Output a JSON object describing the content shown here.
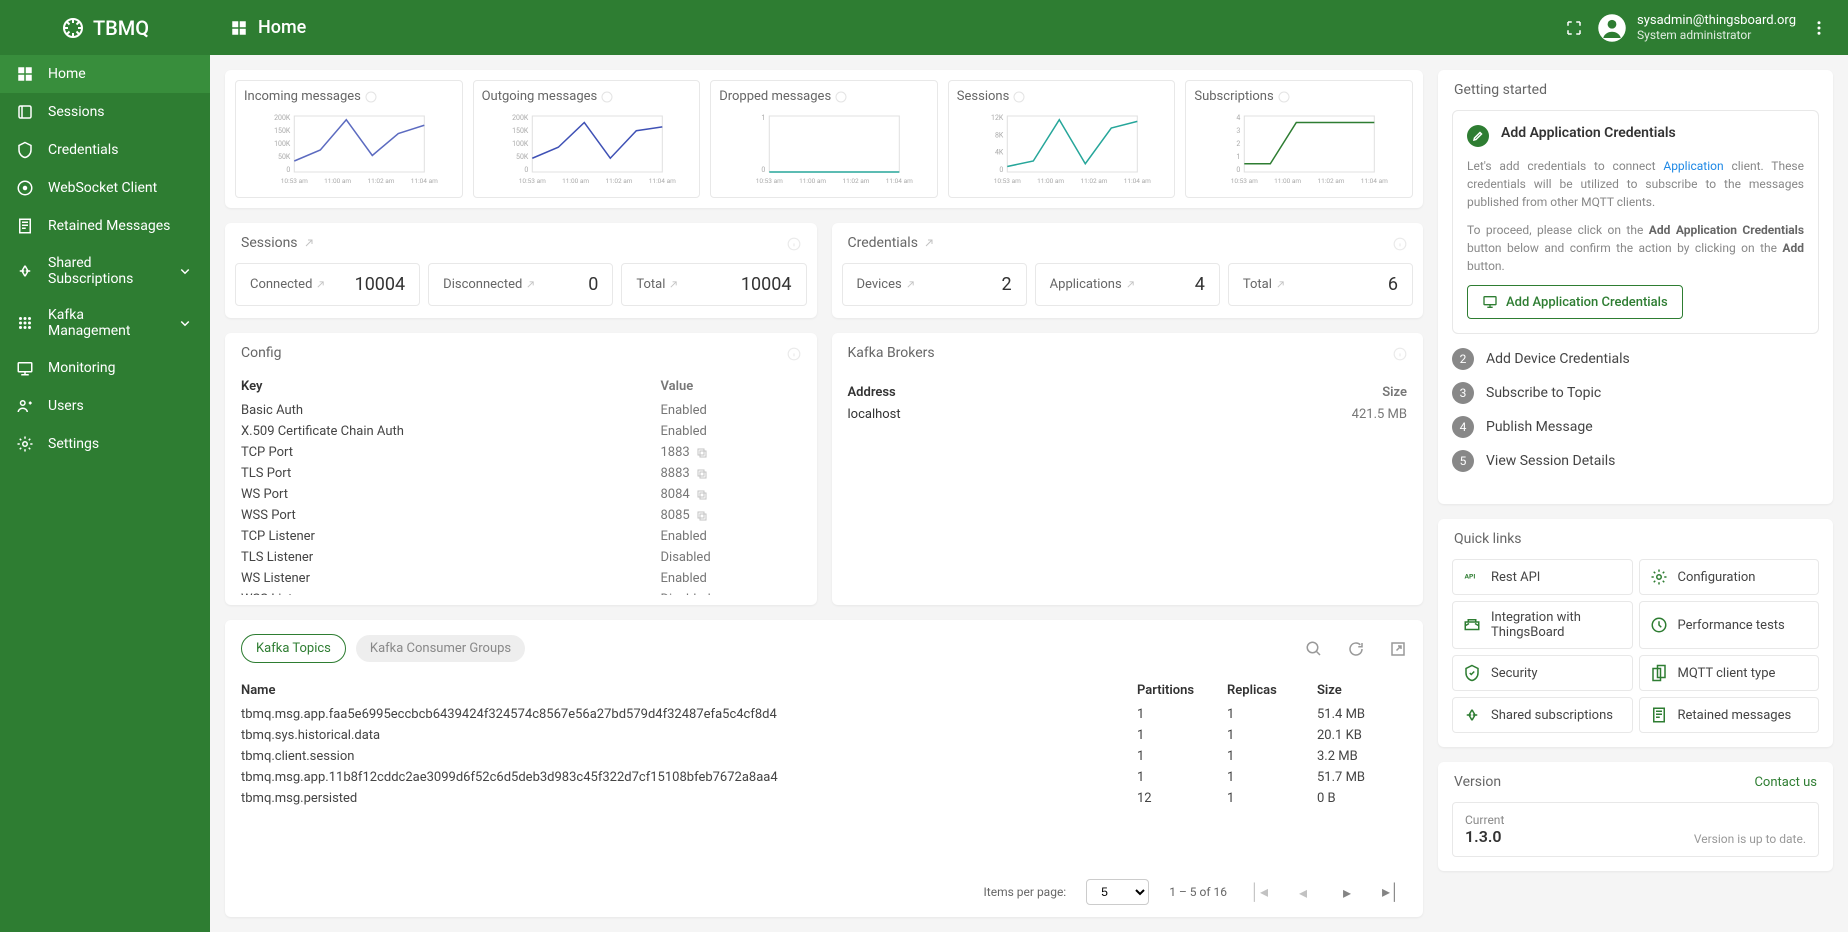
{
  "brand": "TBMQ",
  "pageTitle": "Home",
  "user": {
    "email": "sysadmin@thingsboard.org",
    "role": "System administrator"
  },
  "sidebar": {
    "items": [
      {
        "label": "Home",
        "active": true
      },
      {
        "label": "Sessions"
      },
      {
        "label": "Credentials"
      },
      {
        "label": "WebSocket Client"
      },
      {
        "label": "Retained Messages"
      },
      {
        "label": "Shared Subscriptions",
        "expandable": true
      },
      {
        "label": "Kafka Management",
        "expandable": true
      },
      {
        "label": "Monitoring"
      },
      {
        "label": "Users"
      },
      {
        "label": "Settings"
      }
    ]
  },
  "charts": [
    {
      "title": "Incoming messages",
      "color": "#5c6bc0",
      "yticks": [
        "200K",
        "150K",
        "100K",
        "50K",
        "0"
      ],
      "xticks": [
        "10:53 am",
        "11:00 am",
        "11:02 am",
        "11:04 am"
      ],
      "points": [
        20,
        40,
        95,
        30,
        70,
        85
      ]
    },
    {
      "title": "Outgoing messages",
      "color": "#3f51b5",
      "yticks": [
        "200K",
        "150K",
        "100K",
        "50K",
        "0"
      ],
      "xticks": [
        "10:53 am",
        "11:00 am",
        "11:02 am",
        "11:04 am"
      ],
      "points": [
        25,
        45,
        90,
        25,
        75,
        82
      ]
    },
    {
      "title": "Dropped messages",
      "color": "#26a69a",
      "yticks": [
        "1",
        "0"
      ],
      "xticks": [
        "10:53 am",
        "11:00 am",
        "11:02 am",
        "11:04 am"
      ],
      "points": [
        0,
        0,
        0,
        0,
        0,
        0
      ]
    },
    {
      "title": "Sessions",
      "color": "#26a69a",
      "yticks": [
        "12K",
        "8K",
        "4K",
        "0"
      ],
      "xticks": [
        "10:53 am",
        "11:00 am",
        "11:02 am",
        "11:04 am"
      ],
      "points": [
        10,
        20,
        95,
        15,
        80,
        92
      ]
    },
    {
      "title": "Subscriptions",
      "color": "#2e7d32",
      "yticks": [
        "4",
        "3",
        "2",
        "1",
        "0"
      ],
      "xticks": [
        "10:53 am",
        "11:00 am",
        "11:02 am",
        "11:04 am"
      ],
      "points": [
        15,
        15,
        90,
        90,
        90,
        90
      ]
    }
  ],
  "sessionsSection": {
    "title": "Sessions",
    "stats": [
      {
        "label": "Connected",
        "value": "10004"
      },
      {
        "label": "Disconnected",
        "value": "0"
      },
      {
        "label": "Total",
        "value": "10004"
      }
    ]
  },
  "credentialsSection": {
    "title": "Credentials",
    "stats": [
      {
        "label": "Devices",
        "value": "2"
      },
      {
        "label": "Applications",
        "value": "4"
      },
      {
        "label": "Total",
        "value": "6"
      }
    ]
  },
  "configSection": {
    "title": "Config",
    "keyHeader": "Key",
    "valueHeader": "Value",
    "rows": [
      {
        "key": "Basic Auth",
        "value": "Enabled"
      },
      {
        "key": "X.509 Certificate Chain Auth",
        "value": "Enabled"
      },
      {
        "key": "TCP Port",
        "value": "1883",
        "copy": true
      },
      {
        "key": "TLS Port",
        "value": "8883",
        "copy": true
      },
      {
        "key": "WS Port",
        "value": "8084",
        "copy": true
      },
      {
        "key": "WSS Port",
        "value": "8085",
        "copy": true
      },
      {
        "key": "TCP Listener",
        "value": "Enabled"
      },
      {
        "key": "TLS Listener",
        "value": "Disabled"
      },
      {
        "key": "WS Listener",
        "value": "Enabled"
      },
      {
        "key": "WSS Listener",
        "value": "Disabled"
      }
    ]
  },
  "brokersSection": {
    "title": "Kafka Brokers",
    "addressHeader": "Address",
    "sizeHeader": "Size",
    "rows": [
      {
        "address": "localhost",
        "size": "421.5 MB"
      }
    ]
  },
  "topicsSection": {
    "tabs": [
      {
        "label": "Kafka Topics",
        "active": true
      },
      {
        "label": "Kafka Consumer Groups"
      }
    ],
    "headers": {
      "name": "Name",
      "partitions": "Partitions",
      "replicas": "Replicas",
      "size": "Size"
    },
    "rows": [
      {
        "name": "tbmq.msg.app.faa5e6995eccbcb6439424f324574c8567e56a27bd579d4f32487efa5c4cf8d4",
        "partitions": "1",
        "replicas": "1",
        "size": "51.4 MB"
      },
      {
        "name": "tbmq.sys.historical.data",
        "partitions": "1",
        "replicas": "1",
        "size": "20.1 KB"
      },
      {
        "name": "tbmq.client.session",
        "partitions": "1",
        "replicas": "1",
        "size": "3.2 MB"
      },
      {
        "name": "tbmq.msg.app.11b8f12cddc2ae3099d6f52c6d5deb3d983c45f322d7cf15108bfeb7672a8aa4",
        "partitions": "1",
        "replicas": "1",
        "size": "51.7 MB"
      },
      {
        "name": "tbmq.msg.persisted",
        "partitions": "12",
        "replicas": "1",
        "size": "0 B"
      }
    ],
    "paginator": {
      "itemsLabel": "Items per page:",
      "pageSize": "5",
      "range": "1 – 5 of 16"
    }
  },
  "gettingStarted": {
    "title": "Getting started",
    "step1": {
      "heading": "Add Application Credentials",
      "p1a": "Let's add credentials to connect ",
      "p1link": "Application",
      "p1b": " client. These credentials will be utilized to subscribe to the messages published from other MQTT clients.",
      "p2a": "To proceed, please click on the ",
      "p2b1": "Add Application Credentials",
      "p2c": " button below and confirm the action by clicking on the ",
      "p2b2": "Add",
      "p2d": " button.",
      "button": "Add Application Credentials"
    },
    "steps": [
      {
        "num": "2",
        "label": "Add Device Credentials"
      },
      {
        "num": "3",
        "label": "Subscribe to Topic"
      },
      {
        "num": "4",
        "label": "Publish Message"
      },
      {
        "num": "5",
        "label": "View Session Details"
      }
    ]
  },
  "quickLinks": {
    "title": "Quick links",
    "items": [
      {
        "label": "Rest API"
      },
      {
        "label": "Configuration"
      },
      {
        "label": "Integration with ThingsBoard"
      },
      {
        "label": "Performance tests"
      },
      {
        "label": "Security"
      },
      {
        "label": "MQTT client type"
      },
      {
        "label": "Shared subscriptions"
      },
      {
        "label": "Retained messages"
      }
    ]
  },
  "version": {
    "title": "Version",
    "contact": "Contact us",
    "currentLabel": "Current",
    "currentValue": "1.3.0",
    "status": "Version is up to date."
  },
  "colors": {
    "primary": "#2e7d32",
    "primaryLight": "#388e3c",
    "link": "#1e88e5"
  }
}
